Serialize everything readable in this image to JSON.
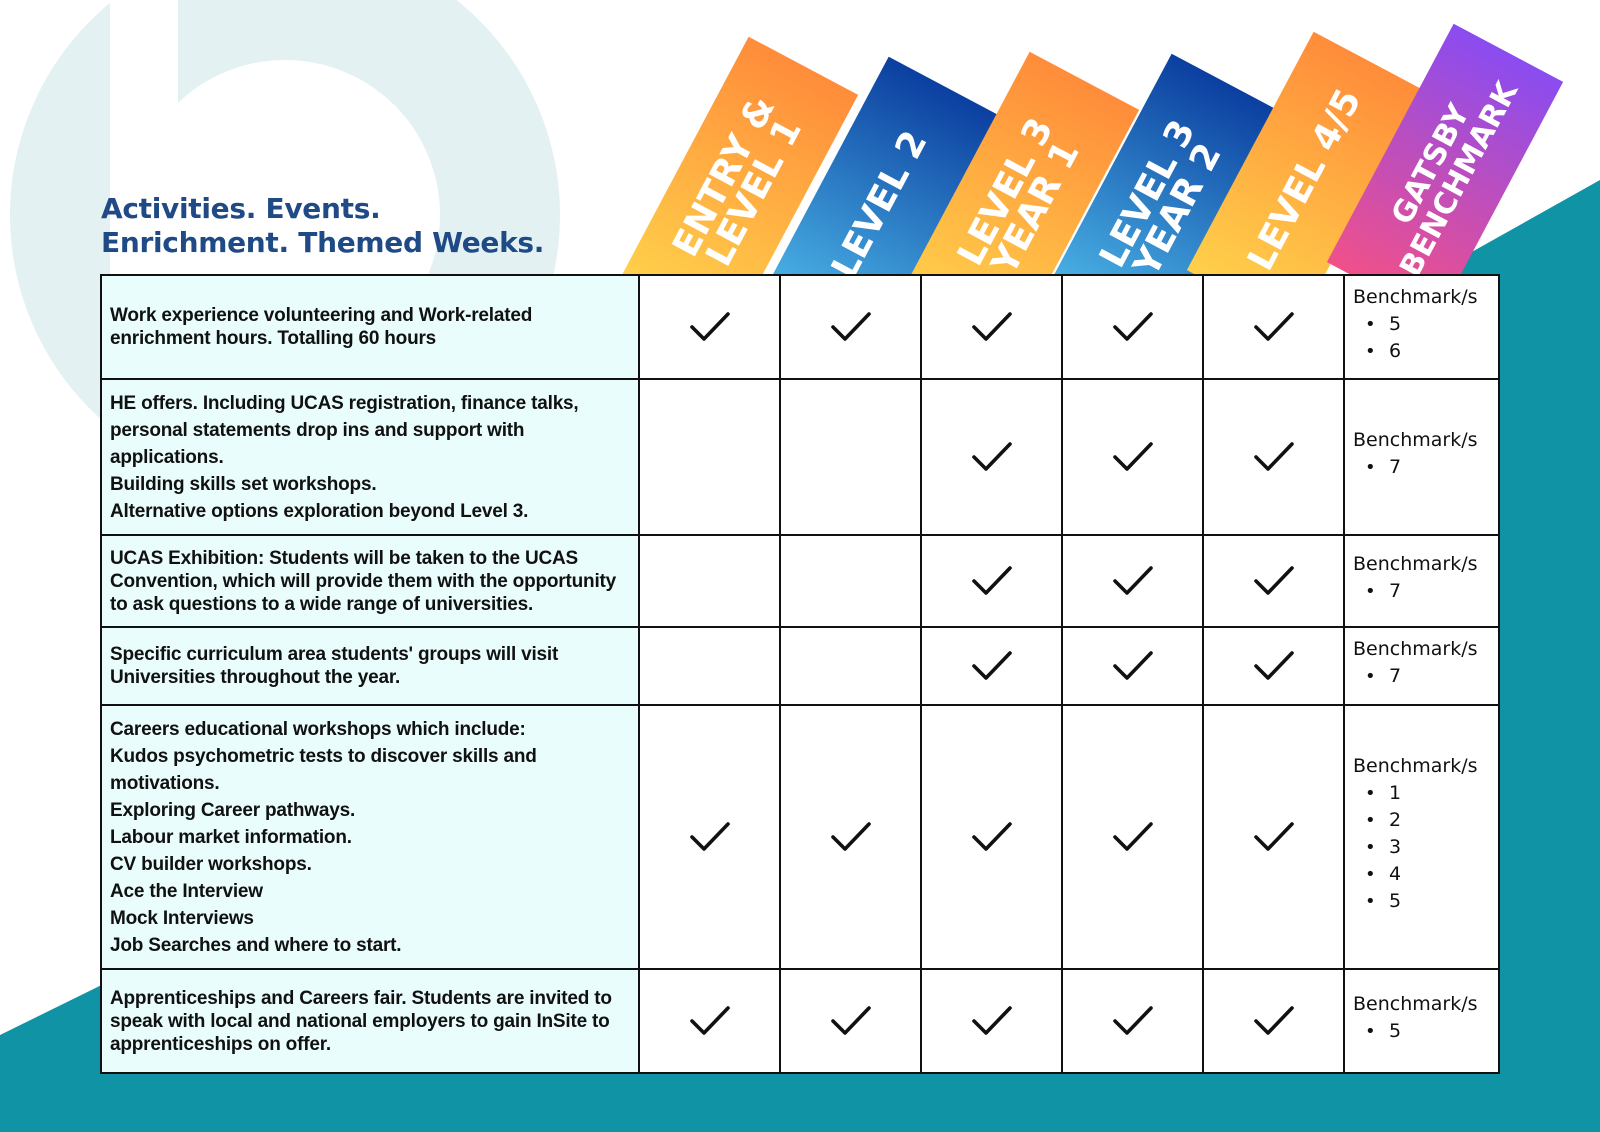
{
  "title": {
    "line1": "Activities. Events.",
    "line2": "Enrichment. Themed Weeks."
  },
  "columns": [
    {
      "lines": [
        "ENTRY &",
        "LEVEL 1"
      ],
      "gradient": [
        "#ffd04a",
        "#ff8c3a"
      ]
    },
    {
      "lines": [
        "LEVEL 2"
      ],
      "gradient": [
        "#4db8e8",
        "#0b3fa0"
      ]
    },
    {
      "lines": [
        "LEVEL 3",
        "YEAR 1"
      ],
      "gradient": [
        "#ffd04a",
        "#ff8c3a"
      ]
    },
    {
      "lines": [
        "LEVEL 3",
        "YEAR 2"
      ],
      "gradient": [
        "#4db8e8",
        "#0b3fa0"
      ]
    },
    {
      "lines": [
        "LEVEL 4/5"
      ],
      "gradient": [
        "#ffd04a",
        "#ff8c3a"
      ]
    },
    {
      "lines": [
        "GATSBY",
        "BENCHMARK"
      ],
      "gradient": [
        "#f0508a",
        "#8a4cf0"
      ]
    }
  ],
  "benchmark_label": "Benchmark/s",
  "rows": [
    {
      "lines": [
        "Work experience volunteering and Work-related",
        "enrichment hours. Totalling 60 hours"
      ],
      "checks": [
        true,
        true,
        true,
        true,
        true
      ],
      "benchmarks": [
        "5",
        "6"
      ]
    },
    {
      "lines": [
        "HE offers. Including UCAS registration, finance talks,",
        "personal statements drop ins and support with",
        "applications.",
        "Building skills set workshops.",
        "Alternative options exploration beyond Level 3."
      ],
      "checks": [
        false,
        false,
        true,
        true,
        true
      ],
      "benchmarks": [
        "7"
      ]
    },
    {
      "lines": [
        "UCAS Exhibition: Students will be taken to the UCAS",
        "Convention, which will provide them with the opportunity",
        "to ask questions to a wide range of universities."
      ],
      "checks": [
        false,
        false,
        true,
        true,
        true
      ],
      "benchmarks": [
        "7"
      ]
    },
    {
      "lines": [
        "Specific curriculum area students' groups will visit",
        "Universities throughout the year."
      ],
      "checks": [
        false,
        false,
        true,
        true,
        true
      ],
      "benchmarks": [
        "7"
      ]
    },
    {
      "lines": [
        "Careers educational workshops which include:",
        " Kudos psychometric tests to discover skills and",
        "motivations.",
        "Exploring Career pathways.",
        "Labour market information.",
        "CV builder workshops.",
        "Ace the Interview",
        "Mock Interviews",
        "Job Searches and where to start."
      ],
      "checks": [
        true,
        true,
        true,
        true,
        true
      ],
      "benchmarks": [
        "1",
        "2",
        "3",
        "4",
        "5"
      ]
    },
    {
      "lines": [
        "Apprenticeships and Careers fair. Students are invited to",
        "speak with local and national employers to gain InSite to",
        "apprenticeships on offer."
      ],
      "checks": [
        true,
        true,
        true,
        true,
        true
      ],
      "benchmarks": [
        "5"
      ]
    }
  ]
}
